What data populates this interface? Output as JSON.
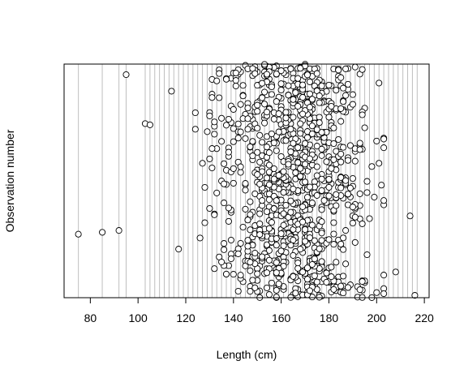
{
  "chart_data": {
    "type": "scatter",
    "title": "",
    "xlabel": "Length (cm)",
    "ylabel": "Observation number",
    "xlim": [
      69,
      222
    ],
    "ylim": [
      0,
      1000
    ],
    "xticks": [
      80,
      100,
      120,
      140,
      160,
      180,
      200,
      220
    ],
    "grid": "vertical lines at each observed length",
    "gridlines_x": [
      75,
      85,
      92,
      95,
      103,
      105,
      107,
      109,
      111,
      113,
      115,
      117,
      119,
      121,
      123,
      125,
      127,
      129,
      131,
      133,
      135,
      137,
      139,
      141,
      143,
      145,
      147,
      149,
      151,
      153,
      155,
      157,
      159,
      161,
      163,
      165,
      167,
      169,
      171,
      173,
      175,
      177,
      179,
      181,
      183,
      185,
      187,
      189,
      191,
      193,
      195,
      197,
      199,
      201,
      203,
      205,
      207,
      209,
      211,
      213,
      215,
      217
    ],
    "marker": "open circle",
    "n_points": 1000,
    "noted_points": [
      {
        "x": 75,
        "y": 272
      },
      {
        "x": 85,
        "y": 280
      },
      {
        "x": 92,
        "y": 288
      },
      {
        "x": 95,
        "y": 955
      },
      {
        "x": 103,
        "y": 745
      },
      {
        "x": 105,
        "y": 740
      },
      {
        "x": 208,
        "y": 110
      },
      {
        "x": 214,
        "y": 350
      },
      {
        "x": 216,
        "y": 10
      }
    ],
    "y_density_profile": [
      {
        "y_from": 0,
        "y_to": 100,
        "x_center": 170,
        "x_sd": 16
      },
      {
        "y_from": 100,
        "y_to": 300,
        "x_center": 163,
        "x_sd": 15
      },
      {
        "y_from": 300,
        "y_to": 500,
        "x_center": 165,
        "x_sd": 17
      },
      {
        "y_from": 500,
        "y_to": 700,
        "x_center": 168,
        "x_sd": 16
      },
      {
        "y_from": 700,
        "y_to": 1000,
        "x_center": 165,
        "x_sd": 16
      }
    ]
  }
}
